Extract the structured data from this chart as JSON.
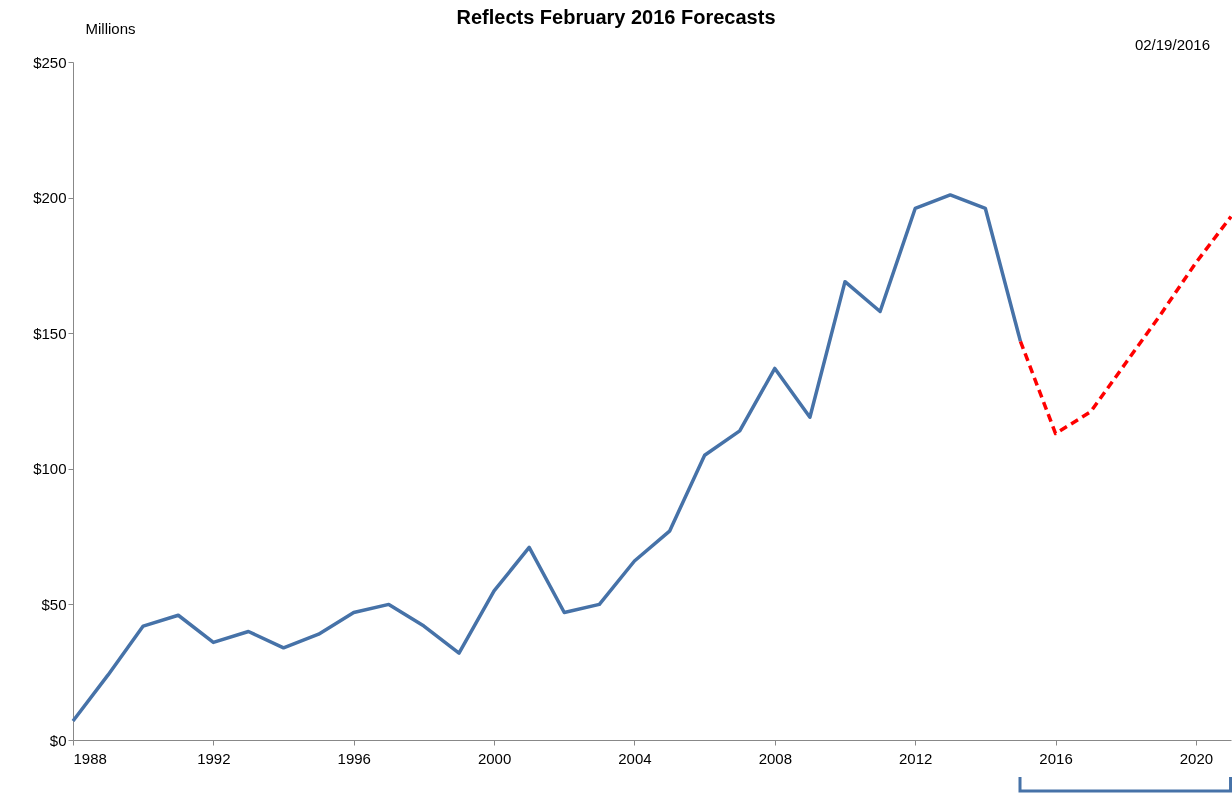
{
  "chart_data": {
    "type": "line",
    "title": "Reflects February 2016 Forecasts",
    "ylabel": "Millions",
    "annotations": [
      "02/19/2016"
    ],
    "xlim": [
      1988,
      2021
    ],
    "xticks": [
      1988,
      1992,
      1996,
      2000,
      2004,
      2008,
      2012,
      2016,
      2020
    ],
    "ylim": [
      0,
      250
    ],
    "yticks": [
      {
        "value": 0,
        "label": "$0"
      },
      {
        "value": 50,
        "label": "$50"
      },
      {
        "value": 100,
        "label": "$100"
      },
      {
        "value": 150,
        "label": "$150"
      },
      {
        "value": 200,
        "label": "$200"
      },
      {
        "value": 250,
        "label": "$250"
      }
    ],
    "grid": false,
    "marker": "none",
    "series": [
      {
        "color": "#4672a8",
        "line_style": "solid",
        "x": [
          1988,
          1989,
          1990,
          1991,
          1992,
          1993,
          1994,
          1995,
          1996,
          1997,
          1998,
          1999,
          2000,
          2001,
          2002,
          2003,
          2004,
          2005,
          2006,
          2007,
          2008,
          2009,
          2010,
          2011,
          2012,
          2013,
          2014,
          2015
        ],
        "values": [
          7,
          24,
          42,
          46,
          36,
          40,
          34,
          39,
          47,
          50,
          42,
          32,
          55,
          71,
          47,
          50,
          66,
          77,
          105,
          114,
          137,
          119,
          169,
          158,
          196,
          201,
          196,
          147
        ]
      },
      {
        "color": "#ff0000",
        "line_style": "dashed",
        "x": [
          2015,
          2016,
          2017,
          2018,
          2019,
          2020,
          2021
        ],
        "values": [
          147,
          113,
          121,
          139,
          157,
          176,
          193
        ]
      }
    ]
  }
}
